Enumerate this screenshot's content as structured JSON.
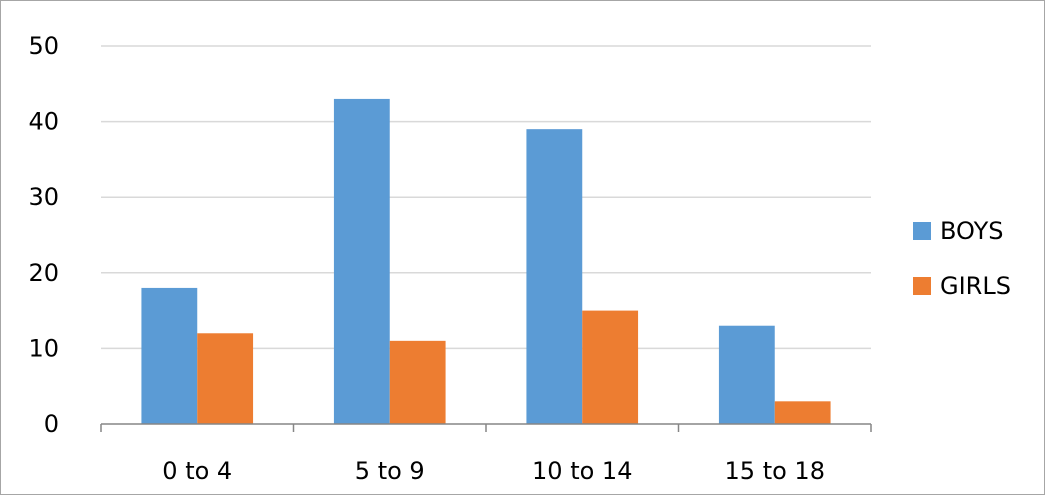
{
  "chart_data": {
    "type": "bar",
    "categories": [
      "0 to 4",
      "5 to 9",
      "10 to 14",
      "15 to 18"
    ],
    "series": [
      {
        "name": "BOYS",
        "values": [
          18,
          43,
          39,
          13
        ],
        "color": "#5b9bd5"
      },
      {
        "name": "GIRLS",
        "values": [
          12,
          11,
          15,
          3
        ],
        "color": "#ed7d31"
      }
    ],
    "ylim": [
      0,
      50
    ],
    "yticks": [
      0,
      10,
      20,
      30,
      40,
      50
    ],
    "grid": true,
    "legend_position": "right",
    "axis_color": "#868686",
    "grid_color": "#d9d9d9"
  }
}
